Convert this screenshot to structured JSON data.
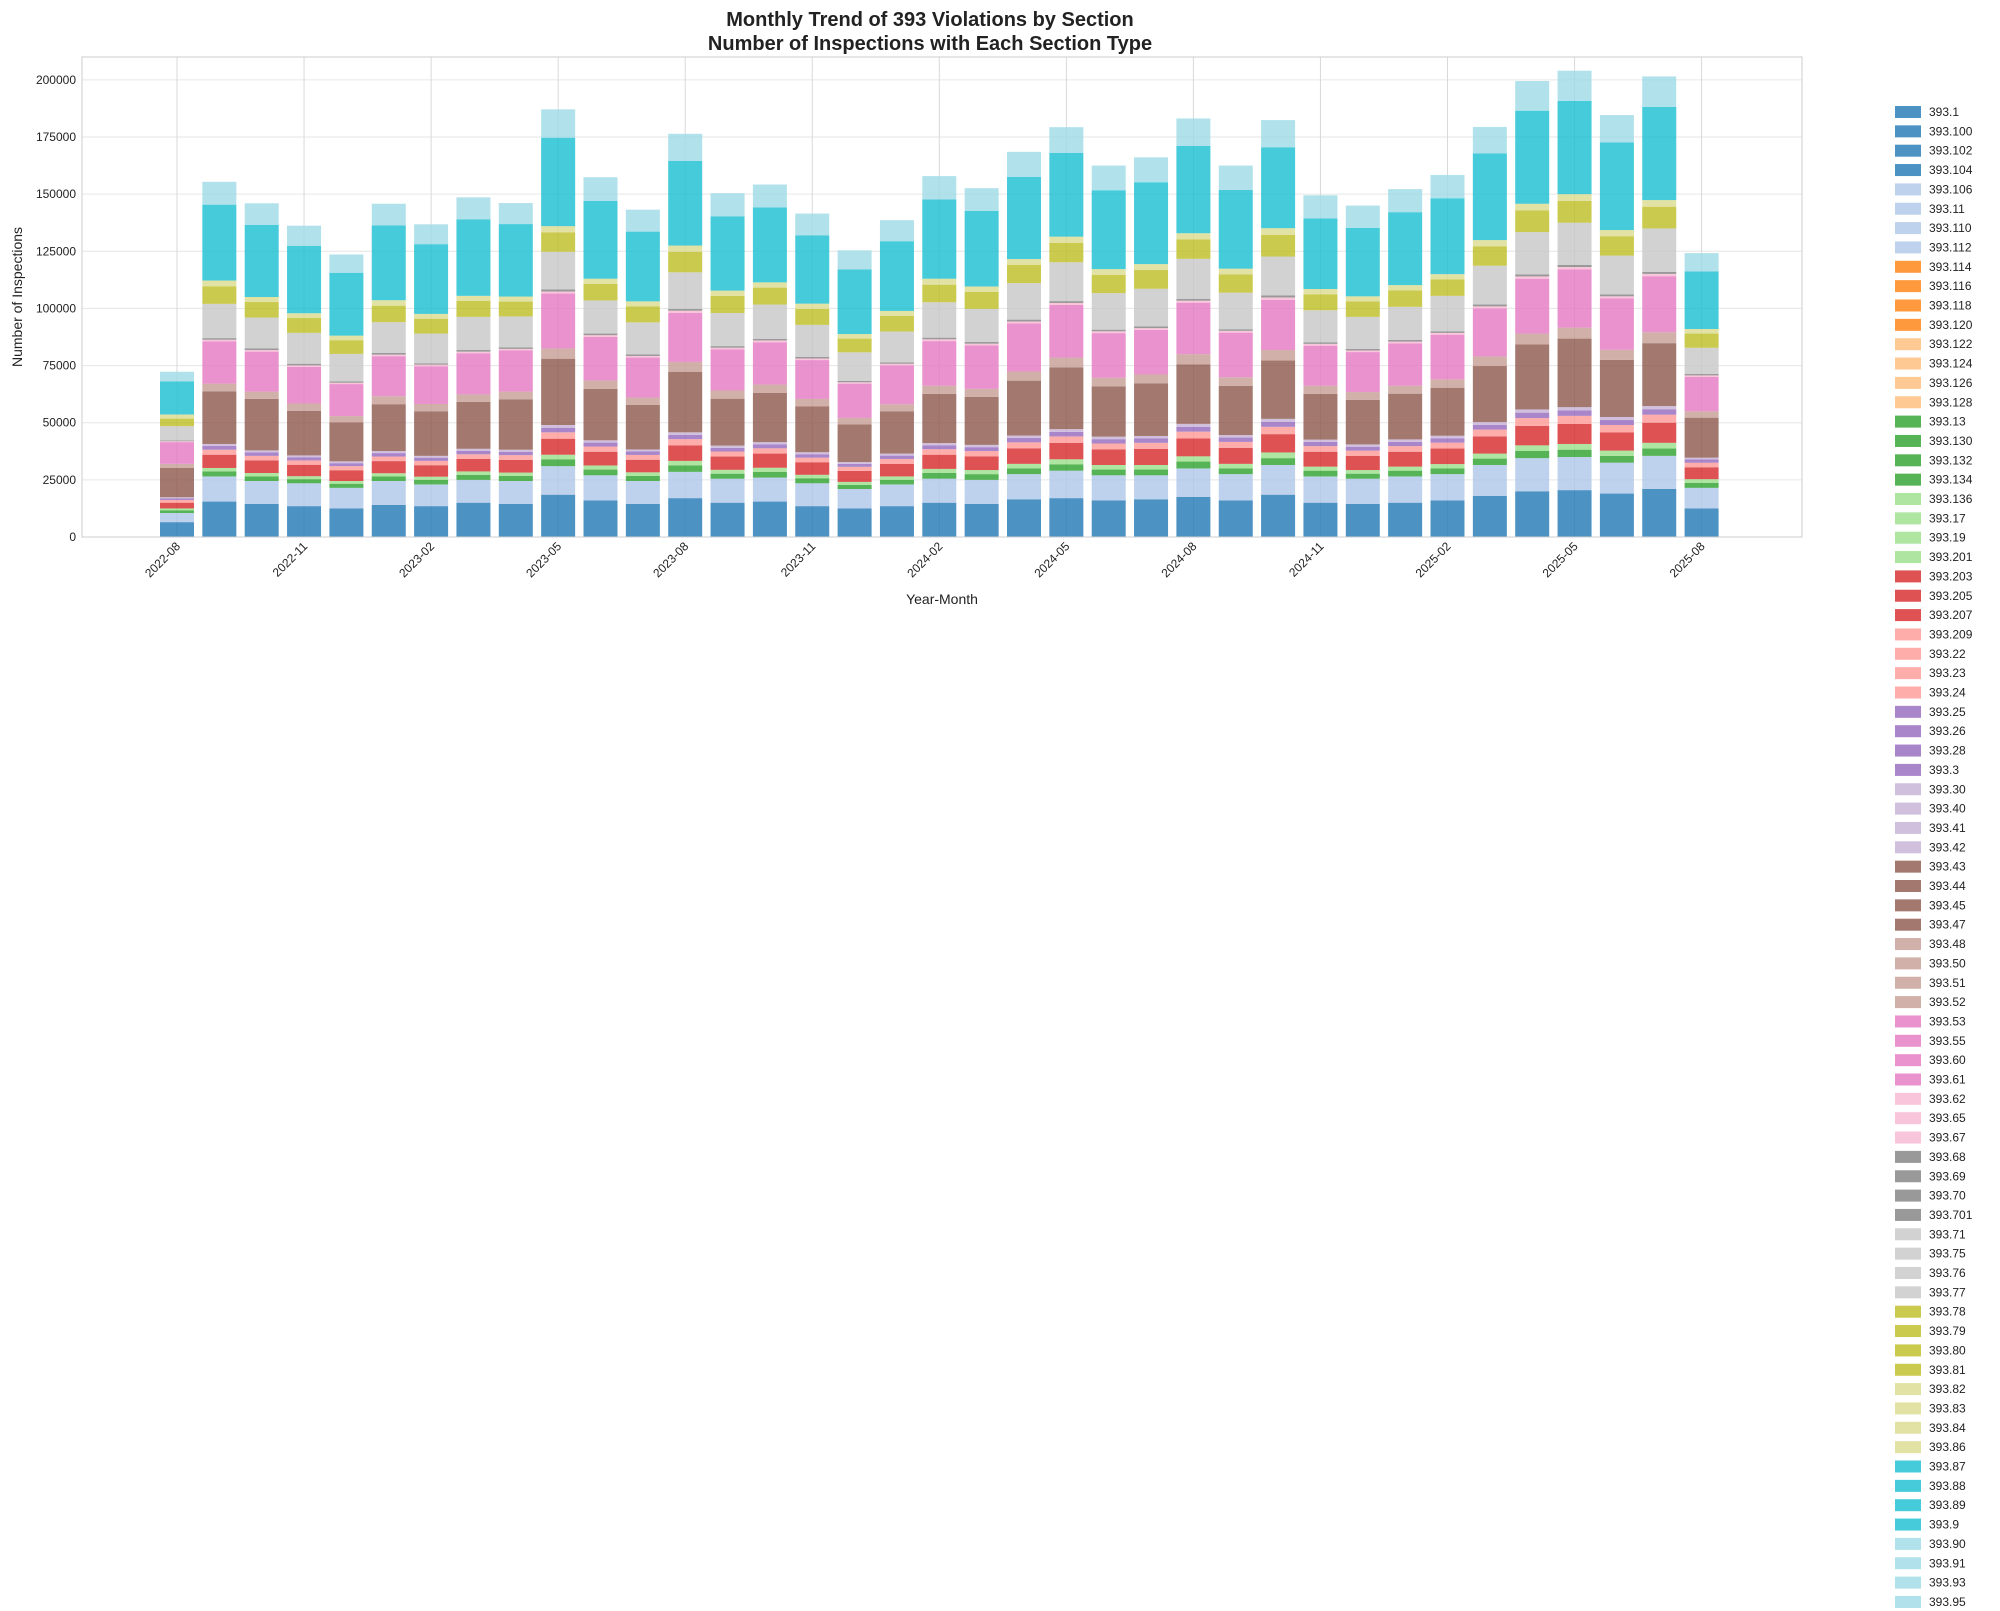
{
  "chart_data": {
    "type": "bar",
    "stacked": true,
    "title": "Monthly Trend of 393 Violations by Section",
    "subtitle": "Number of Inspections with Each Section Type",
    "xlabel": "Year-Month",
    "ylabel": "Number of Inspections",
    "ylim": [
      0,
      210000
    ],
    "yticks": [
      0,
      25000,
      50000,
      75000,
      100000,
      125000,
      150000,
      175000,
      200000
    ],
    "xticks_shown": [
      "2022-08",
      "2022-11",
      "2023-02",
      "2023-05",
      "2023-08",
      "2023-11",
      "2024-02",
      "2024-05",
      "2024-08",
      "2024-11",
      "2025-02",
      "2025-05",
      "2025-08"
    ],
    "grid": true,
    "legend_position": "outside right",
    "categories": [
      "2022-08",
      "2022-09",
      "2022-10",
      "2022-11",
      "2022-12",
      "2023-01",
      "2023-02",
      "2023-03",
      "2023-04",
      "2023-05",
      "2023-06",
      "2023-07",
      "2023-08",
      "2023-09",
      "2023-10",
      "2023-11",
      "2023-12",
      "2024-01",
      "2024-02",
      "2024-03",
      "2024-04",
      "2024-05",
      "2024-06",
      "2024-07",
      "2024-08",
      "2024-09",
      "2024-10",
      "2024-11",
      "2024-12",
      "2025-01",
      "2025-02",
      "2025-03",
      "2025-04",
      "2025-05",
      "2025-06",
      "2025-07",
      "2025-08"
    ],
    "visible_segments": [
      {
        "group": "393.1-393.104",
        "color": "#1f77b4",
        "values": [
          6500,
          15500,
          14500,
          13500,
          12500,
          14000,
          13500,
          15000,
          14500,
          18500,
          16000,
          14500,
          17000,
          15000,
          15500,
          13500,
          12500,
          13500,
          15000,
          14500,
          16500,
          17000,
          16000,
          16500,
          17500,
          16000,
          18500,
          15000,
          14500,
          15000,
          16000,
          18000,
          20000,
          20500,
          19000,
          21000,
          12500
        ]
      },
      {
        "group": "393.106-393.112",
        "color": "#aec7e8",
        "values": [
          4000,
          11000,
          10000,
          10000,
          9000,
          10500,
          9500,
          10000,
          10000,
          12500,
          11000,
          10000,
          11500,
          10500,
          10500,
          10000,
          8500,
          9500,
          10500,
          10500,
          11000,
          12000,
          11000,
          10500,
          12500,
          11500,
          13000,
          11500,
          11000,
          11500,
          11500,
          13500,
          14500,
          14500,
          13500,
          14500,
          9000
        ]
      },
      {
        "group": "393.13-393.134",
        "color": "#2ca02c",
        "values": [
          1200,
          2200,
          2000,
          1800,
          1800,
          2000,
          2000,
          2200,
          2200,
          3000,
          2500,
          2200,
          2800,
          2200,
          2500,
          2200,
          1800,
          2000,
          2500,
          2500,
          2500,
          2800,
          2500,
          2500,
          3000,
          2500,
          3000,
          2500,
          2200,
          2500,
          2500,
          2800,
          3200,
          3200,
          3000,
          3200,
          2200
        ]
      },
      {
        "group": "393.136-393.201",
        "color": "#98df8a",
        "values": [
          800,
          1500,
          1500,
          1300,
          1200,
          1400,
          1400,
          1500,
          1500,
          2000,
          1800,
          1600,
          2000,
          1700,
          1800,
          1500,
          1300,
          1500,
          1800,
          1800,
          2000,
          2200,
          2000,
          2000,
          2300,
          2000,
          2500,
          1800,
          1600,
          1800,
          1900,
          2200,
          2400,
          2500,
          2300,
          2500,
          1600
        ]
      },
      {
        "group": "393.203-393.207",
        "color": "#d62728",
        "values": [
          2500,
          5800,
          5500,
          5000,
          4700,
          5300,
          5000,
          5500,
          5500,
          7000,
          6000,
          5500,
          6800,
          5800,
          6200,
          5500,
          4800,
          5500,
          6200,
          6000,
          6800,
          7200,
          6800,
          7000,
          7800,
          7000,
          8000,
          6500,
          6200,
          6500,
          6800,
          7500,
          8500,
          8800,
          8000,
          8800,
          5200
        ]
      },
      {
        "group": "393.209-393.24",
        "color": "#ff9896",
        "values": [
          1200,
          2200,
          2000,
          1900,
          1800,
          2000,
          1900,
          2000,
          2100,
          2800,
          2300,
          2100,
          2700,
          2200,
          2300,
          2000,
          1800,
          2100,
          2400,
          2300,
          2600,
          2800,
          2600,
          2700,
          3000,
          2600,
          3200,
          2500,
          2300,
          2500,
          2600,
          3000,
          3400,
          3500,
          3200,
          3500,
          2000
        ]
      },
      {
        "group": "393.25-393.3",
        "color": "#9467bd",
        "values": [
          700,
          1600,
          1500,
          1400,
          1300,
          1500,
          1400,
          1500,
          1500,
          2000,
          1700,
          1500,
          1900,
          1600,
          1700,
          1500,
          1300,
          1500,
          1700,
          1700,
          1900,
          2000,
          1900,
          1900,
          2100,
          1900,
          2200,
          1800,
          1700,
          1800,
          1900,
          2100,
          2400,
          2400,
          2200,
          2400,
          1400
        ]
      },
      {
        "group": "393.30-393.42",
        "color": "#c5b0d5",
        "values": [
          500,
          900,
          900,
          800,
          800,
          900,
          800,
          900,
          900,
          1200,
          1000,
          900,
          1100,
          1000,
          1000,
          900,
          800,
          900,
          1000,
          1000,
          1100,
          1200,
          1100,
          1100,
          1300,
          1100,
          1300,
          1000,
          1000,
          1100,
          1100,
          1200,
          1400,
          1400,
          1300,
          1400,
          800
        ]
      },
      {
        "group": "393.43-393.47",
        "color": "#8c564b",
        "values": [
          12800,
          23000,
          22500,
          19500,
          17000,
          20500,
          19500,
          20500,
          22000,
          29000,
          22500,
          19500,
          26500,
          20500,
          21500,
          20000,
          16500,
          18500,
          21500,
          21000,
          24000,
          27000,
          22000,
          23000,
          26000,
          21500,
          25500,
          20000,
          19500,
          20000,
          21000,
          24500,
          28500,
          30000,
          25000,
          27500,
          17500
        ]
      },
      {
        "group": "393.48-393.52",
        "color": "#c49c94",
        "values": [
          1800,
          3400,
          3200,
          3200,
          2800,
          3500,
          3200,
          3300,
          3400,
          4500,
          3700,
          3200,
          4300,
          3600,
          3700,
          3300,
          2800,
          3100,
          3600,
          3500,
          4000,
          4300,
          3800,
          3900,
          4500,
          3800,
          4600,
          3600,
          3400,
          3500,
          3700,
          4200,
          4700,
          4800,
          4400,
          4800,
          2800
        ]
      },
      {
        "group": "393.53-393.61",
        "color": "#e377c2",
        "values": [
          9500,
          18500,
          17500,
          16000,
          14000,
          17500,
          16500,
          18000,
          18000,
          24000,
          19000,
          17500,
          21500,
          18000,
          18500,
          17000,
          15000,
          17000,
          19500,
          19000,
          21000,
          23000,
          19500,
          19500,
          22500,
          19500,
          22000,
          17500,
          17500,
          18500,
          19500,
          21000,
          24000,
          25500,
          22500,
          24500,
          15000
        ]
      },
      {
        "group": "393.62-393.67",
        "color": "#f7b6d2",
        "values": [
          400,
          700,
          700,
          700,
          600,
          700,
          700,
          700,
          700,
          900,
          800,
          700,
          900,
          700,
          800,
          700,
          600,
          700,
          800,
          800,
          900,
          900,
          800,
          800,
          900,
          800,
          1000,
          800,
          700,
          800,
          800,
          900,
          1000,
          1000,
          900,
          1000,
          700
        ]
      },
      {
        "group": "393.68-393.701",
        "color": "#7f7f7f",
        "values": [
          300,
          700,
          700,
          700,
          600,
          700,
          600,
          700,
          700,
          900,
          700,
          700,
          800,
          700,
          700,
          700,
          600,
          600,
          700,
          700,
          800,
          800,
          700,
          700,
          800,
          700,
          900,
          700,
          700,
          700,
          700,
          800,
          900,
          900,
          800,
          900,
          600
        ]
      },
      {
        "group": "393.71-393.77",
        "color": "#c7c7c7",
        "values": [
          6300,
          15000,
          13500,
          13500,
          12000,
          13500,
          13000,
          14500,
          13500,
          16500,
          14500,
          14000,
          16000,
          14500,
          15000,
          14000,
          12500,
          13500,
          15500,
          14500,
          16000,
          17000,
          16000,
          16500,
          17500,
          16000,
          17000,
          14000,
          14000,
          14500,
          15500,
          17000,
          18500,
          18500,
          17000,
          19000,
          11500
        ]
      },
      {
        "group": "393.78-393.81",
        "color": "#bcbd22",
        "values": [
          3300,
          7700,
          6800,
          6500,
          6000,
          7200,
          6500,
          7000,
          6500,
          8500,
          7200,
          7000,
          9000,
          7500,
          7400,
          7000,
          6000,
          6800,
          7700,
          7400,
          8000,
          8500,
          8000,
          8200,
          8500,
          8000,
          9500,
          7000,
          6800,
          7200,
          7200,
          8500,
          9500,
          9500,
          8500,
          9500,
          6200
        ]
      },
      {
        "group": "393.82-393.86",
        "color": "#dbdb8d",
        "values": [
          1800,
          2500,
          2200,
          2100,
          2000,
          2400,
          2100,
          2200,
          2200,
          2700,
          2300,
          2200,
          2700,
          2300,
          2300,
          2300,
          2000,
          2200,
          2600,
          2400,
          2500,
          2700,
          2500,
          2600,
          2700,
          2500,
          2900,
          2300,
          2200,
          2300,
          2300,
          2700,
          2900,
          3000,
          2700,
          2900,
          2000
        ]
      },
      {
        "group": "393.87-393.9",
        "color": "#17becf",
        "values": [
          14500,
          33200,
          31500,
          29500,
          27500,
          32700,
          30500,
          33500,
          31700,
          38700,
          34000,
          30500,
          37000,
          32500,
          32800,
          29900,
          28300,
          30500,
          34700,
          33100,
          35900,
          36600,
          34500,
          35800,
          38200,
          34400,
          35400,
          30900,
          29900,
          31900,
          33200,
          37900,
          40700,
          40800,
          38300,
          40800,
          25200
        ]
      },
      {
        "group": "393.90-393.95",
        "color": "#9edae5",
        "values": [
          4200,
          10000,
          9500,
          8800,
          8000,
          9500,
          8700,
          9600,
          9200,
          12400,
          10400,
          9600,
          11900,
          10100,
          10000,
          9500,
          8300,
          9200,
          10200,
          9900,
          11000,
          11300,
          10800,
          10900,
          12000,
          10700,
          11900,
          10100,
          9800,
          10100,
          10200,
          11600,
          13000,
          13200,
          12000,
          13300,
          8000
        ]
      }
    ],
    "legend": [
      {
        "label": "393.1",
        "color": "#1f77b4"
      },
      {
        "label": "393.100",
        "color": "#1f77b4"
      },
      {
        "label": "393.102",
        "color": "#1f77b4"
      },
      {
        "label": "393.104",
        "color": "#1f77b4"
      },
      {
        "label": "393.106",
        "color": "#aec7e8"
      },
      {
        "label": "393.11",
        "color": "#aec7e8"
      },
      {
        "label": "393.110",
        "color": "#aec7e8"
      },
      {
        "label": "393.112",
        "color": "#aec7e8"
      },
      {
        "label": "393.114",
        "color": "#ff7f0e"
      },
      {
        "label": "393.116",
        "color": "#ff7f0e"
      },
      {
        "label": "393.118",
        "color": "#ff7f0e"
      },
      {
        "label": "393.120",
        "color": "#ff7f0e"
      },
      {
        "label": "393.122",
        "color": "#ffbb78"
      },
      {
        "label": "393.124",
        "color": "#ffbb78"
      },
      {
        "label": "393.126",
        "color": "#ffbb78"
      },
      {
        "label": "393.128",
        "color": "#ffbb78"
      },
      {
        "label": "393.13",
        "color": "#2ca02c"
      },
      {
        "label": "393.130",
        "color": "#2ca02c"
      },
      {
        "label": "393.132",
        "color": "#2ca02c"
      },
      {
        "label": "393.134",
        "color": "#2ca02c"
      },
      {
        "label": "393.136",
        "color": "#98df8a"
      },
      {
        "label": "393.17",
        "color": "#98df8a"
      },
      {
        "label": "393.19",
        "color": "#98df8a"
      },
      {
        "label": "393.201",
        "color": "#98df8a"
      },
      {
        "label": "393.203",
        "color": "#d62728"
      },
      {
        "label": "393.205",
        "color": "#d62728"
      },
      {
        "label": "393.207",
        "color": "#d62728"
      },
      {
        "label": "393.209",
        "color": "#ff9896"
      },
      {
        "label": "393.22",
        "color": "#ff9896"
      },
      {
        "label": "393.23",
        "color": "#ff9896"
      },
      {
        "label": "393.24",
        "color": "#ff9896"
      },
      {
        "label": "393.25",
        "color": "#9467bd"
      },
      {
        "label": "393.26",
        "color": "#9467bd"
      },
      {
        "label": "393.28",
        "color": "#9467bd"
      },
      {
        "label": "393.3",
        "color": "#9467bd"
      },
      {
        "label": "393.30",
        "color": "#c5b0d5"
      },
      {
        "label": "393.40",
        "color": "#c5b0d5"
      },
      {
        "label": "393.41",
        "color": "#c5b0d5"
      },
      {
        "label": "393.42",
        "color": "#c5b0d5"
      },
      {
        "label": "393.43",
        "color": "#8c564b"
      },
      {
        "label": "393.44",
        "color": "#8c564b"
      },
      {
        "label": "393.45",
        "color": "#8c564b"
      },
      {
        "label": "393.47",
        "color": "#8c564b"
      },
      {
        "label": "393.48",
        "color": "#c49c94"
      },
      {
        "label": "393.50",
        "color": "#c49c94"
      },
      {
        "label": "393.51",
        "color": "#c49c94"
      },
      {
        "label": "393.52",
        "color": "#c49c94"
      },
      {
        "label": "393.53",
        "color": "#e377c2"
      },
      {
        "label": "393.55",
        "color": "#e377c2"
      },
      {
        "label": "393.60",
        "color": "#e377c2"
      },
      {
        "label": "393.61",
        "color": "#e377c2"
      },
      {
        "label": "393.62",
        "color": "#f7b6d2"
      },
      {
        "label": "393.65",
        "color": "#f7b6d2"
      },
      {
        "label": "393.67",
        "color": "#f7b6d2"
      },
      {
        "label": "393.68",
        "color": "#7f7f7f"
      },
      {
        "label": "393.69",
        "color": "#7f7f7f"
      },
      {
        "label": "393.70",
        "color": "#7f7f7f"
      },
      {
        "label": "393.701",
        "color": "#7f7f7f"
      },
      {
        "label": "393.71",
        "color": "#c7c7c7"
      },
      {
        "label": "393.75",
        "color": "#c7c7c7"
      },
      {
        "label": "393.76",
        "color": "#c7c7c7"
      },
      {
        "label": "393.77",
        "color": "#c7c7c7"
      },
      {
        "label": "393.78",
        "color": "#bcbd22"
      },
      {
        "label": "393.79",
        "color": "#bcbd22"
      },
      {
        "label": "393.80",
        "color": "#bcbd22"
      },
      {
        "label": "393.81",
        "color": "#bcbd22"
      },
      {
        "label": "393.82",
        "color": "#dbdb8d"
      },
      {
        "label": "393.83",
        "color": "#dbdb8d"
      },
      {
        "label": "393.84",
        "color": "#dbdb8d"
      },
      {
        "label": "393.86",
        "color": "#dbdb8d"
      },
      {
        "label": "393.87",
        "color": "#17becf"
      },
      {
        "label": "393.88",
        "color": "#17becf"
      },
      {
        "label": "393.89",
        "color": "#17becf"
      },
      {
        "label": "393.9",
        "color": "#17becf"
      },
      {
        "label": "393.90",
        "color": "#9edae5"
      },
      {
        "label": "393.91",
        "color": "#9edae5"
      },
      {
        "label": "393.93",
        "color": "#9edae5"
      },
      {
        "label": "393.95",
        "color": "#9edae5"
      }
    ]
  }
}
